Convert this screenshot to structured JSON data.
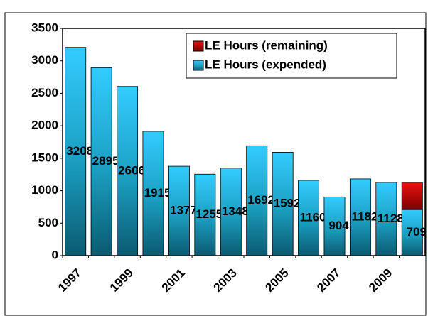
{
  "chart_data": {
    "type": "bar",
    "stacked": true,
    "categories": [
      "1997",
      null,
      "1999",
      null,
      "2001",
      null,
      "2003",
      null,
      "2005",
      null,
      "2007",
      null,
      "2009",
      null
    ],
    "series": [
      {
        "name": "LE Hours (expended)",
        "color": "#33ccff",
        "values": [
          3208,
          2895,
          2606,
          1915,
          1377,
          1255,
          1348,
          1692,
          1592,
          1160,
          904,
          1182,
          1128,
          709
        ]
      },
      {
        "name": "LE Hours (remaining)",
        "color": "#ee1111",
        "values": [
          null,
          null,
          null,
          null,
          null,
          null,
          null,
          null,
          null,
          null,
          null,
          null,
          null,
          420
        ]
      }
    ],
    "ylim": [
      0,
      3500
    ],
    "yticks": [
      0,
      500,
      1000,
      1500,
      2000,
      2500,
      3000,
      3500
    ],
    "legend": "upper right"
  }
}
